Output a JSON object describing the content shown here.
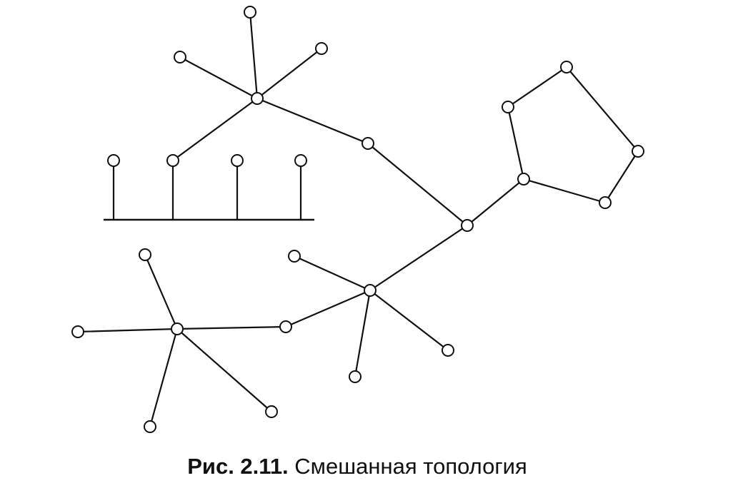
{
  "figure": {
    "label": "Рис. 2.11.",
    "title": "Смешанная топология"
  },
  "colors": {
    "line": "#111111",
    "node_fill": "#ffffff",
    "background": "#ffffff"
  }
}
